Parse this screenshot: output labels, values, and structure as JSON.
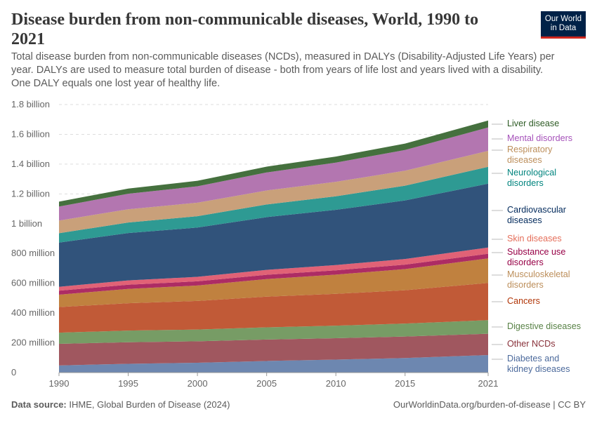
{
  "header": {
    "title": "Disease burden from non-communicable diseases, World, 1990 to 2021",
    "subtitle": "Total disease burden from non-communicable diseases (NCDs), measured in DALYs (Disability-Adjusted Life Years) per year. DALYs are used to measure total burden of disease - both from years of life lost and years lived with a disability. One DALY equals one lost year of healthy life.",
    "logo_line1": "Our World",
    "logo_line2": "in Data"
  },
  "footer": {
    "source_label": "Data source:",
    "source": "IHME, Global Burden of Disease (2024)",
    "url": "OurWorldinData.org/burden-of-disease | CC BY"
  },
  "chart_data": {
    "type": "area",
    "stacked": true,
    "title": "Disease burden from non-communicable diseases, World, 1990 to 2021",
    "xlim": [
      1990,
      2021
    ],
    "ylim": [
      0,
      1800000000
    ],
    "grid": "horizontal dashed",
    "legend": "right (inline labels)",
    "x_ticks": [
      "1990",
      "1995",
      "2000",
      "2005",
      "2010",
      "2015",
      "2021"
    ],
    "y_ticks": [
      {
        "v": 0,
        "label": "0"
      },
      {
        "v": 200000000,
        "label": "200 million"
      },
      {
        "v": 400000000,
        "label": "400 million"
      },
      {
        "v": 600000000,
        "label": "600 million"
      },
      {
        "v": 800000000,
        "label": "800 million"
      },
      {
        "v": 1000000000,
        "label": "1 billion"
      },
      {
        "v": 1200000000,
        "label": "1.2 billion"
      },
      {
        "v": 1400000000,
        "label": "1.4 billion"
      },
      {
        "v": 1600000000,
        "label": "1.6 billion"
      },
      {
        "v": 1800000000,
        "label": "1.8 billion"
      }
    ],
    "x": [
      1990,
      1995,
      2000,
      2005,
      2010,
      2015,
      2021
    ],
    "unit": "million DALYs",
    "series": [
      {
        "name": "Diabetes and kidney diseases",
        "color": "#6D87B0",
        "label_color": "#4C6A9C",
        "values": [
          48,
          59,
          66,
          78,
          87,
          98,
          118
        ]
      },
      {
        "name": "Other NCDs",
        "color": "#A0575F",
        "label_color": "#883039",
        "values": [
          145,
          145,
          144,
          144,
          144,
          144,
          143
        ]
      },
      {
        "name": "Digestive diseases",
        "color": "#779C65",
        "label_color": "#578145",
        "values": [
          75,
          78,
          79,
          82,
          84,
          87,
          91
        ]
      },
      {
        "name": "Cancers",
        "color": "#C15A37",
        "label_color": "#B13507",
        "values": [
          172,
          184,
          192,
          206,
          214,
          224,
          250
        ]
      },
      {
        "name": "Musculoskeletal disorders",
        "color": "#C0813F",
        "label_color": "#BC8E5A",
        "values": [
          83,
          96,
          104,
          118,
          129,
          142,
          165
        ]
      },
      {
        "name": "Substance use disorders",
        "color": "#AD2C64",
        "label_color": "#970046",
        "values": [
          27,
          28,
          28,
          29,
          29,
          30,
          31
        ]
      },
      {
        "name": "Skin diseases",
        "color": "#E16276",
        "label_color": "#E56E5A",
        "values": [
          26,
          29,
          30,
          33,
          35,
          38,
          42
        ]
      },
      {
        "name": "Cardiovascular diseases",
        "color": "#31537B",
        "label_color": "#00295B",
        "values": [
          297,
          318,
          331,
          354,
          371,
          393,
          429
        ]
      },
      {
        "name": "Neurological disorders",
        "color": "#2E9A93",
        "label_color": "#00847E",
        "values": [
          63,
          71,
          76,
          85,
          91,
          99,
          113
        ]
      },
      {
        "name": "Respiratory diseases",
        "color": "#C9A07A",
        "label_color": "#BC8E5A",
        "values": [
          85,
          89,
          91,
          94,
          97,
          101,
          107
        ]
      },
      {
        "name": "Mental disorders",
        "color": "#B376B0",
        "label_color": "#A652BA",
        "values": [
          94,
          104,
          110,
          121,
          129,
          139,
          157
        ]
      },
      {
        "name": "Liver disease",
        "color": "#45703E",
        "label_color": "#2C5A23",
        "values": [
          33,
          35,
          37,
          39,
          41,
          43,
          47
        ]
      }
    ]
  }
}
